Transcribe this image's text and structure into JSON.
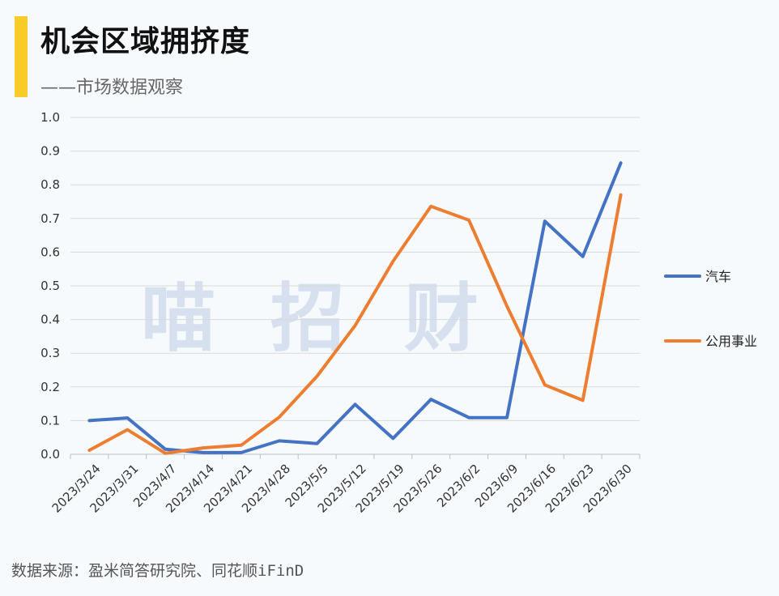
{
  "header": {
    "title": "机会区域拥挤度",
    "subtitle": "——市场数据观察"
  },
  "footer": {
    "source": "数据来源：盈米简答研究院、同花顺iFinD"
  },
  "watermark": {
    "chars": [
      "喵",
      "招",
      "财"
    ]
  },
  "chart_data": {
    "type": "line",
    "x": [
      "2023/3/24",
      "2023/3/31",
      "2023/4/7",
      "2023/4/14",
      "2023/4/21",
      "2023/4/28",
      "2023/5/5",
      "2023/5/12",
      "2023/5/19",
      "2023/5/26",
      "2023/6/2",
      "2023/6/9",
      "2023/6/16",
      "2023/6/23",
      "2023/6/30"
    ],
    "ylim": [
      0,
      1.0
    ],
    "yticks": [
      "0.0",
      "0.1",
      "0.2",
      "0.3",
      "0.4",
      "0.5",
      "0.6",
      "0.7",
      "0.8",
      "0.9",
      "1.0"
    ],
    "grid": true,
    "legend": "right",
    "series": [
      {
        "name": "汽车",
        "color": "#4472c4",
        "values": [
          0.1,
          0.108,
          0.015,
          0.005,
          0.005,
          0.04,
          0.032,
          0.148,
          0.047,
          0.163,
          0.109,
          0.109,
          0.692,
          0.587,
          0.865
        ]
      },
      {
        "name": "公用事业",
        "color": "#ed7d31",
        "values": [
          0.012,
          0.073,
          0.003,
          0.019,
          0.027,
          0.11,
          0.232,
          0.382,
          0.573,
          0.736,
          0.695,
          0.44,
          0.206,
          0.16,
          0.77
        ]
      }
    ]
  }
}
